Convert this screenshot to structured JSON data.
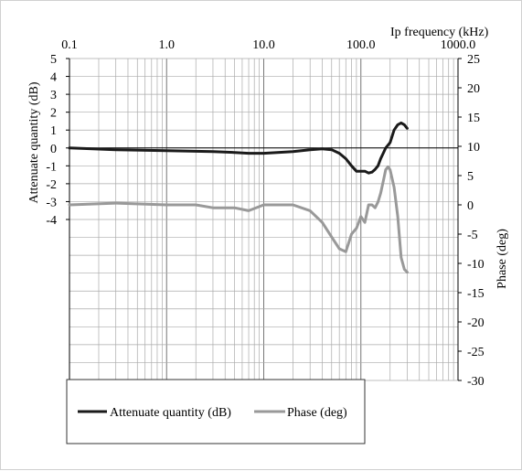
{
  "chart_data": {
    "type": "line",
    "x_axis": {
      "label": "Ip frequency (kHz)",
      "scale": "log",
      "range": [
        0.1,
        1000.0
      ],
      "tick_labels": [
        "0.1",
        "1.0",
        "10.0",
        "100.0",
        "1000.0"
      ],
      "position": "top"
    },
    "y_axis_left": {
      "label": "Attenuate quantity (dB)",
      "range": [
        -13,
        5
      ],
      "tick_labels": [
        "5",
        "4",
        "3",
        "2",
        "1",
        "0",
        "-1",
        "-2",
        "-3",
        "-4"
      ]
    },
    "y_axis_right": {
      "label": "Phase (deg)",
      "range": [
        -30,
        25
      ],
      "tick_labels": [
        "25",
        "20",
        "15",
        "10",
        "5",
        "0",
        "-5",
        "-10",
        "-15",
        "-20",
        "-25",
        "-30"
      ]
    },
    "grid": true,
    "legend": {
      "placement": "bottom-left",
      "entries": [
        "Attenuate quantity (dB)",
        "Phase (deg)"
      ]
    },
    "series": [
      {
        "name": "Attenuate quantity (dB)",
        "axis": "left",
        "color": "#1a1a1a",
        "x": [
          0.1,
          0.3,
          1,
          3,
          5,
          7,
          10,
          20,
          30,
          40,
          50,
          60,
          70,
          80,
          90,
          100,
          110,
          120,
          130,
          140,
          150,
          160,
          170,
          180,
          200,
          220,
          240,
          260,
          280,
          300
        ],
        "y": [
          0.0,
          -0.1,
          -0.15,
          -0.2,
          -0.25,
          -0.3,
          -0.3,
          -0.2,
          -0.1,
          -0.05,
          -0.1,
          -0.3,
          -0.6,
          -1.0,
          -1.3,
          -1.3,
          -1.3,
          -1.4,
          -1.35,
          -1.2,
          -1.0,
          -0.6,
          -0.3,
          0.0,
          0.3,
          1.0,
          1.3,
          1.4,
          1.3,
          1.1
        ]
      },
      {
        "name": "Phase (deg)",
        "axis": "right",
        "color": "#999999",
        "x": [
          0.1,
          0.3,
          1,
          2,
          3,
          5,
          7,
          10,
          20,
          30,
          40,
          50,
          60,
          70,
          80,
          90,
          100,
          110,
          120,
          130,
          140,
          150,
          160,
          170,
          180,
          190,
          200,
          220,
          240,
          260,
          280,
          300
        ],
        "y": [
          0,
          0.3,
          0,
          0,
          -0.5,
          -0.5,
          -1,
          0,
          0,
          -1,
          -3,
          -5.5,
          -7.5,
          -8,
          -5,
          -4,
          -2,
          -3,
          0,
          0,
          -0.5,
          0.5,
          2,
          4,
          6,
          6.5,
          6,
          3,
          -2,
          -9,
          -11,
          -11.5
        ]
      }
    ]
  }
}
